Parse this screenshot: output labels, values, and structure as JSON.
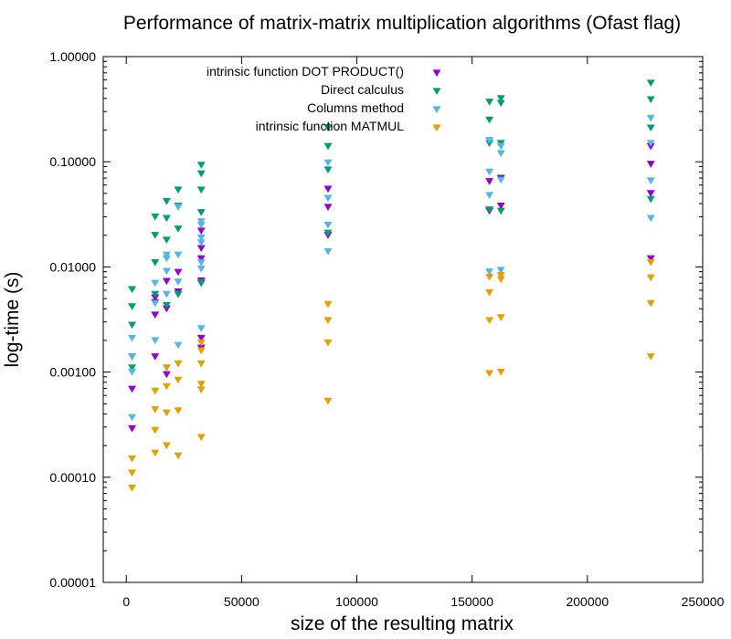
{
  "chart_data": {
    "type": "scatter",
    "title": "Performance of matrix-matrix multiplication algorithms (Ofast flag)",
    "xlabel": "size of the resulting matrix",
    "ylabel": "log-time (s)",
    "xlim": [
      -10000,
      250000
    ],
    "ylim": [
      1e-05,
      1.0
    ],
    "yscale": "log",
    "x_ticks": [
      0,
      50000,
      100000,
      150000,
      200000,
      250000
    ],
    "x_tick_labels": [
      "0",
      "50000",
      "100000",
      "150000",
      "200000",
      "250000"
    ],
    "y_ticks": [
      1e-05,
      0.0001,
      0.001,
      0.01,
      0.1,
      1.0
    ],
    "y_tick_labels": [
      "0.00001",
      "0.00010",
      "0.00100",
      "0.01000",
      "0.10000",
      "1.00000"
    ],
    "legend_position": "top-right",
    "series": [
      {
        "name": "intrinsic function DOT PRODUCT()",
        "color": "#9400d3",
        "marker": "triangle-down",
        "points": [
          [
            2500,
            0.0014
          ],
          [
            2500,
            0.00069
          ],
          [
            2500,
            0.00029
          ],
          [
            12500,
            0.0051
          ],
          [
            12500,
            0.0046
          ],
          [
            12500,
            0.0035
          ],
          [
            12500,
            0.0014
          ],
          [
            17500,
            0.0073
          ],
          [
            17500,
            0.004
          ],
          [
            17500,
            0.00095
          ],
          [
            22500,
            0.0089
          ],
          [
            22500,
            0.0058
          ],
          [
            22500,
            0.0055
          ],
          [
            32500,
            0.022
          ],
          [
            32500,
            0.015
          ],
          [
            32500,
            0.012
          ],
          [
            32500,
            0.0074
          ],
          [
            32500,
            0.007
          ],
          [
            32500,
            0.0021
          ],
          [
            32500,
            0.0017
          ],
          [
            87500,
            0.055
          ],
          [
            87500,
            0.037
          ],
          [
            87500,
            0.02
          ],
          [
            157500,
            0.065
          ],
          [
            157500,
            0.034
          ],
          [
            162500,
            0.07
          ],
          [
            162500,
            0.038
          ],
          [
            227500,
            0.14
          ],
          [
            227500,
            0.095
          ],
          [
            227500,
            0.05
          ],
          [
            227500,
            0.012
          ]
        ]
      },
      {
        "name": "Direct calculus",
        "color": "#009e73",
        "marker": "triangle-down",
        "points": [
          [
            2500,
            0.0061
          ],
          [
            2500,
            0.0042
          ],
          [
            2500,
            0.0028
          ],
          [
            2500,
            0.0011
          ],
          [
            12500,
            0.03
          ],
          [
            12500,
            0.02
          ],
          [
            12500,
            0.011
          ],
          [
            12500,
            0.0055
          ],
          [
            17500,
            0.042
          ],
          [
            17500,
            0.029
          ],
          [
            17500,
            0.018
          ],
          [
            17500,
            0.0043
          ],
          [
            22500,
            0.054
          ],
          [
            22500,
            0.038
          ],
          [
            22500,
            0.023
          ],
          [
            22500,
            0.0055
          ],
          [
            32500,
            0.093
          ],
          [
            32500,
            0.077
          ],
          [
            32500,
            0.054
          ],
          [
            32500,
            0.033
          ],
          [
            32500,
            0.0071
          ],
          [
            87500,
            0.21
          ],
          [
            87500,
            0.14
          ],
          [
            87500,
            0.084
          ],
          [
            87500,
            0.021
          ],
          [
            157500,
            0.37
          ],
          [
            157500,
            0.25
          ],
          [
            157500,
            0.15
          ],
          [
            157500,
            0.035
          ],
          [
            162500,
            0.4
          ],
          [
            162500,
            0.36
          ],
          [
            162500,
            0.15
          ],
          [
            162500,
            0.034
          ],
          [
            227500,
            0.56
          ],
          [
            227500,
            0.39
          ],
          [
            227500,
            0.21
          ],
          [
            227500,
            0.044
          ]
        ]
      },
      {
        "name": "Columns method",
        "color": "#56b4e9",
        "marker": "triangle-down",
        "points": [
          [
            2500,
            0.0021
          ],
          [
            2500,
            0.0014
          ],
          [
            2500,
            0.001
          ],
          [
            2500,
            0.00037
          ],
          [
            12500,
            0.007
          ],
          [
            12500,
            0.0045
          ],
          [
            12500,
            0.002
          ],
          [
            17500,
            0.013
          ],
          [
            17500,
            0.012
          ],
          [
            17500,
            0.0091
          ],
          [
            17500,
            0.0055
          ],
          [
            17500,
            0.0011
          ],
          [
            22500,
            0.037
          ],
          [
            22500,
            0.013
          ],
          [
            22500,
            0.0072
          ],
          [
            22500,
            0.0018
          ],
          [
            32500,
            0.027
          ],
          [
            32500,
            0.025
          ],
          [
            32500,
            0.019
          ],
          [
            32500,
            0.017
          ],
          [
            32500,
            0.011
          ],
          [
            32500,
            0.0096
          ],
          [
            32500,
            0.0026
          ],
          [
            87500,
            0.098
          ],
          [
            87500,
            0.045
          ],
          [
            87500,
            0.025
          ],
          [
            87500,
            0.014
          ],
          [
            157500,
            0.16
          ],
          [
            157500,
            0.08
          ],
          [
            157500,
            0.048
          ],
          [
            157500,
            0.009
          ],
          [
            162500,
            0.14
          ],
          [
            162500,
            0.12
          ],
          [
            162500,
            0.067
          ],
          [
            162500,
            0.0093
          ],
          [
            227500,
            0.26
          ],
          [
            227500,
            0.15
          ],
          [
            227500,
            0.066
          ],
          [
            227500,
            0.029
          ]
        ]
      },
      {
        "name": "intrinsic function MATMUL",
        "color": "#e69f00",
        "marker": "triangle-down",
        "points": [
          [
            2500,
            0.00015
          ],
          [
            2500,
            0.00011
          ],
          [
            2500,
            7.9e-05
          ],
          [
            12500,
            0.00066
          ],
          [
            12500,
            0.00044
          ],
          [
            12500,
            0.00028
          ],
          [
            12500,
            0.00017
          ],
          [
            17500,
            0.0011
          ],
          [
            17500,
            0.00073
          ],
          [
            17500,
            0.00041
          ],
          [
            17500,
            0.0002
          ],
          [
            22500,
            0.0012
          ],
          [
            22500,
            0.00084
          ],
          [
            22500,
            0.00043
          ],
          [
            22500,
            0.00016
          ],
          [
            32500,
            0.0019
          ],
          [
            32500,
            0.0016
          ],
          [
            32500,
            0.0012
          ],
          [
            32500,
            0.00077
          ],
          [
            32500,
            0.00068
          ],
          [
            32500,
            0.00024
          ],
          [
            87500,
            0.0044
          ],
          [
            87500,
            0.0031
          ],
          [
            87500,
            0.0019
          ],
          [
            87500,
            0.00053
          ],
          [
            157500,
            0.008
          ],
          [
            157500,
            0.0057
          ],
          [
            157500,
            0.0031
          ],
          [
            157500,
            0.00097
          ],
          [
            162500,
            0.0083
          ],
          [
            162500,
            0.0076
          ],
          [
            162500,
            0.0033
          ],
          [
            162500,
            0.001
          ],
          [
            227500,
            0.011
          ],
          [
            227500,
            0.0079
          ],
          [
            227500,
            0.0045
          ],
          [
            227500,
            0.0014
          ]
        ]
      }
    ]
  }
}
